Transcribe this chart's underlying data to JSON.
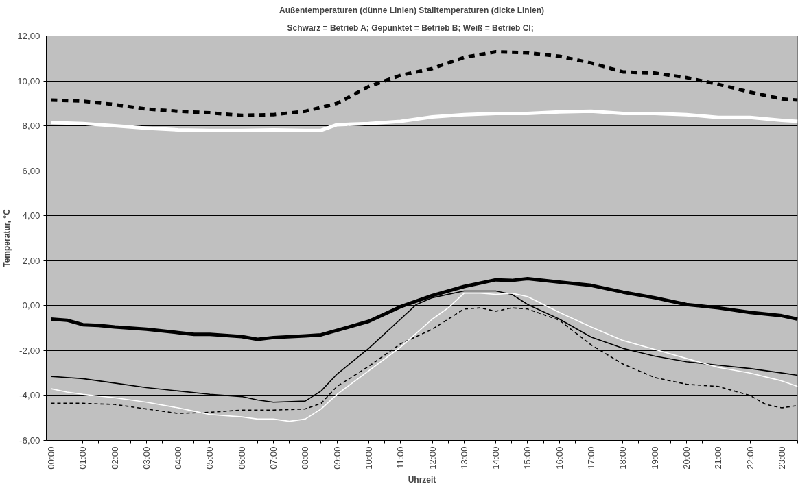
{
  "chart_data": {
    "type": "line",
    "title": "Außentemperaturen (dünne Linien)          Stalltemperaturen (dicke Linien)",
    "subtitle": "Schwarz = Betrieb A;      Gepunktet = Betrieb B;      Weiß = Betrieb Cl;",
    "xlabel": "Uhrzeit",
    "ylabel": "Temperatur, °C",
    "xlim": [
      -0.15,
      23.5
    ],
    "ylim": [
      -6,
      12
    ],
    "xticks": [
      {
        "value": 0,
        "label": "00:00"
      },
      {
        "value": 0.5,
        "label": null
      },
      {
        "value": 1,
        "label": "01:00"
      },
      {
        "value": 1.5,
        "label": null
      },
      {
        "value": 2,
        "label": "02:00"
      },
      {
        "value": 2.5,
        "label": null
      },
      {
        "value": 3,
        "label": "03:00"
      },
      {
        "value": 3.5,
        "label": null
      },
      {
        "value": 4,
        "label": "04:00"
      },
      {
        "value": 4.5,
        "label": null
      },
      {
        "value": 5,
        "label": "05:00"
      },
      {
        "value": 5.5,
        "label": null
      },
      {
        "value": 6,
        "label": "06:00"
      },
      {
        "value": 6.5,
        "label": null
      },
      {
        "value": 7,
        "label": "07:00"
      },
      {
        "value": 7.5,
        "label": null
      },
      {
        "value": 8,
        "label": "08:00"
      },
      {
        "value": 8.5,
        "label": null
      },
      {
        "value": 9,
        "label": "09:00"
      },
      {
        "value": 9.5,
        "label": null
      },
      {
        "value": 10,
        "label": "10:00"
      },
      {
        "value": 10.5,
        "label": null
      },
      {
        "value": 11,
        "label": "11:00"
      },
      {
        "value": 11.5,
        "label": null
      },
      {
        "value": 12,
        "label": "12:00"
      },
      {
        "value": 12.5,
        "label": null
      },
      {
        "value": 13,
        "label": "13:00"
      },
      {
        "value": 13.5,
        "label": null
      },
      {
        "value": 14,
        "label": "14:00"
      },
      {
        "value": 14.5,
        "label": null
      },
      {
        "value": 15,
        "label": "15:00"
      },
      {
        "value": 15.5,
        "label": null
      },
      {
        "value": 16,
        "label": "16:00"
      },
      {
        "value": 16.5,
        "label": null
      },
      {
        "value": 17,
        "label": "17:00"
      },
      {
        "value": 17.5,
        "label": null
      },
      {
        "value": 18,
        "label": "18:00"
      },
      {
        "value": 18.5,
        "label": null
      },
      {
        "value": 19,
        "label": "19:00"
      },
      {
        "value": 19.5,
        "label": null
      },
      {
        "value": 20,
        "label": "20:00"
      },
      {
        "value": 20.5,
        "label": null
      },
      {
        "value": 21,
        "label": "21:00"
      },
      {
        "value": 21.5,
        "label": null
      },
      {
        "value": 22,
        "label": "22:00"
      },
      {
        "value": 22.5,
        "label": null
      },
      {
        "value": 23,
        "label": "23:00"
      },
      {
        "value": 23.5,
        "label": null
      }
    ],
    "yticks": [
      {
        "value": -6,
        "label": "-6,00"
      },
      {
        "value": -4,
        "label": "-4,00"
      },
      {
        "value": -2,
        "label": "-2,00"
      },
      {
        "value": 0,
        "label": "0,00"
      },
      {
        "value": 2,
        "label": "2,00"
      },
      {
        "value": 4,
        "label": "4,00"
      },
      {
        "value": 6,
        "label": "6,00"
      },
      {
        "value": 8,
        "label": "8,00"
      },
      {
        "value": 10,
        "label": "10,00"
      },
      {
        "value": 12,
        "label": "12,00"
      }
    ],
    "grid": "y",
    "series": [
      {
        "color": "#000000",
        "line_style": "dashed",
        "x": [
          0,
          1,
          2,
          3,
          4,
          5,
          6,
          7,
          8,
          9,
          10,
          11,
          12,
          13,
          14,
          15,
          16,
          17,
          18,
          19,
          20,
          21,
          22,
          23,
          23.5
        ],
        "values": [
          9.15,
          9.1,
          8.95,
          8.75,
          8.65,
          8.58,
          8.47,
          8.5,
          8.65,
          9.0,
          9.75,
          10.25,
          10.55,
          11.05,
          11.3,
          11.25,
          11.1,
          10.8,
          10.4,
          10.35,
          10.15,
          9.85,
          9.5,
          9.2,
          9.15
        ]
      },
      {
        "color": "#ffffff",
        "line_style": "solid",
        "x": [
          0,
          1,
          2,
          3,
          4,
          5,
          6,
          7,
          8,
          8.5,
          9,
          10,
          11,
          12,
          13,
          14,
          15,
          16,
          17,
          18,
          19,
          20,
          21,
          22,
          23,
          23.5
        ],
        "values": [
          8.15,
          8.1,
          8.0,
          7.9,
          7.82,
          7.8,
          7.8,
          7.82,
          7.8,
          7.8,
          8.05,
          8.1,
          8.2,
          8.4,
          8.5,
          8.55,
          8.55,
          8.62,
          8.65,
          8.55,
          8.55,
          8.5,
          8.38,
          8.38,
          8.25,
          8.2
        ]
      },
      {
        "color": "#000000",
        "line_style": "solid",
        "x": [
          0,
          0.5,
          1,
          1.5,
          2,
          3,
          4,
          4.5,
          5,
          6,
          6.5,
          7,
          8,
          8.5,
          9,
          10,
          11,
          12,
          13,
          14,
          14.5,
          15,
          16,
          17,
          18,
          19,
          20,
          21,
          22,
          23,
          23.5
        ],
        "values": [
          -0.6,
          -0.65,
          -0.85,
          -0.88,
          -0.95,
          -1.05,
          -1.2,
          -1.28,
          -1.28,
          -1.38,
          -1.5,
          -1.42,
          -1.35,
          -1.3,
          -1.1,
          -0.7,
          -0.05,
          0.45,
          0.85,
          1.15,
          1.12,
          1.2,
          1.05,
          0.9,
          0.6,
          0.35,
          0.05,
          -0.1,
          -0.3,
          -0.45,
          -0.6
        ]
      },
      {
        "color": "#000000",
        "line_style": "solid",
        "x": [
          0,
          0.5,
          1,
          2,
          3,
          4,
          5,
          6,
          6.5,
          7,
          8,
          8.5,
          9,
          10,
          11,
          11.5,
          12,
          13,
          14,
          14.5,
          15,
          16,
          17,
          18,
          19,
          20,
          21,
          22,
          23,
          23.5
        ],
        "values": [
          -3.15,
          -3.2,
          -3.25,
          -3.45,
          -3.65,
          -3.8,
          -3.95,
          -4.05,
          -4.2,
          -4.3,
          -4.25,
          -3.8,
          -3.05,
          -1.9,
          -0.6,
          0.05,
          0.35,
          0.65,
          0.65,
          0.5,
          0.05,
          -0.6,
          -1.4,
          -1.9,
          -2.25,
          -2.5,
          -2.65,
          -2.8,
          -3.0,
          -3.1
        ]
      },
      {
        "color": "#000000",
        "line_style": "dashed",
        "x": [
          0,
          1,
          2,
          3,
          4,
          5,
          6,
          7,
          8,
          8.5,
          9,
          10,
          11,
          12,
          12.5,
          13,
          13.5,
          14,
          14.5,
          15,
          16,
          17,
          18,
          19,
          20,
          21,
          22,
          22.5,
          23,
          23.5
        ],
        "values": [
          -4.35,
          -4.35,
          -4.4,
          -4.6,
          -4.8,
          -4.75,
          -4.65,
          -4.65,
          -4.6,
          -4.35,
          -3.6,
          -2.7,
          -1.7,
          -1.05,
          -0.6,
          -0.15,
          -0.1,
          -0.25,
          -0.1,
          -0.15,
          -0.65,
          -1.75,
          -2.6,
          -3.2,
          -3.5,
          -3.6,
          -4.0,
          -4.4,
          -4.55,
          -4.45
        ]
      },
      {
        "color": "#ffffff",
        "line_style": "solid",
        "x": [
          0,
          0.5,
          1,
          2,
          3,
          4,
          4.5,
          5,
          6,
          6.5,
          7,
          7.5,
          8,
          8.5,
          9,
          10,
          11,
          12,
          12.5,
          13,
          13.5,
          14,
          14.5,
          15,
          16,
          17,
          18,
          19,
          20,
          21,
          22,
          23,
          23.5
        ],
        "values": [
          -3.7,
          -3.85,
          -3.95,
          -4.1,
          -4.3,
          -4.55,
          -4.7,
          -4.85,
          -4.95,
          -5.05,
          -5.05,
          -5.15,
          -5.05,
          -4.6,
          -3.95,
          -2.9,
          -1.85,
          -0.6,
          -0.1,
          0.55,
          0.55,
          0.5,
          0.55,
          0.4,
          -0.3,
          -0.95,
          -1.55,
          -1.95,
          -2.35,
          -2.75,
          -3.0,
          -3.35,
          -3.6
        ]
      }
    ]
  }
}
